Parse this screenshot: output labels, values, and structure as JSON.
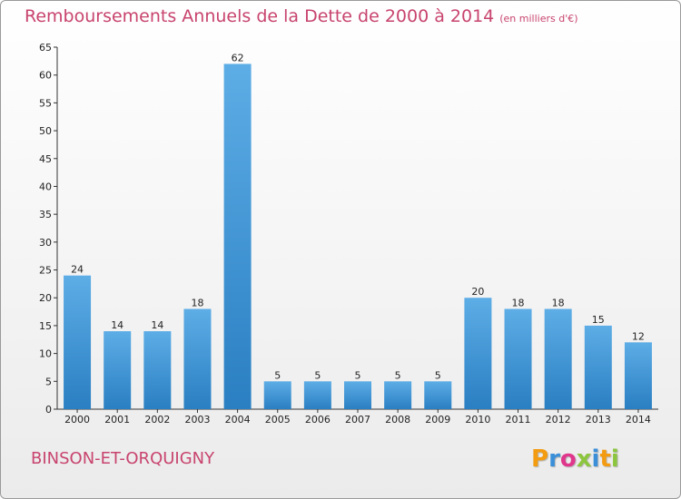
{
  "header": {
    "title": "Remboursements Annuels de la Dette de 2000 à 2014",
    "unit_note": "(en milliers d'€)"
  },
  "footer": {
    "commune": "BINSON-ET-ORQUIGNY",
    "logo_text": "Proxiti"
  },
  "colors": {
    "accent": "#c8446e",
    "bar_top": "#5dade6",
    "bar_bottom": "#2a7fc2"
  },
  "chart_data": {
    "type": "bar",
    "categories": [
      "2000",
      "2001",
      "2002",
      "2003",
      "2004",
      "2005",
      "2006",
      "2007",
      "2008",
      "2009",
      "2010",
      "2011",
      "2012",
      "2013",
      "2014"
    ],
    "values": [
      24,
      14,
      14,
      18,
      62,
      5,
      5,
      5,
      5,
      5,
      20,
      18,
      18,
      15,
      12
    ],
    "title": "Remboursements Annuels de la Dette de 2000 à 2014",
    "xlabel": "",
    "ylabel": "",
    "ylim": [
      0,
      65
    ],
    "yticks": [
      0,
      5,
      10,
      15,
      20,
      25,
      30,
      35,
      40,
      45,
      50,
      55,
      60,
      65
    ],
    "grid": false,
    "legend": "none"
  }
}
